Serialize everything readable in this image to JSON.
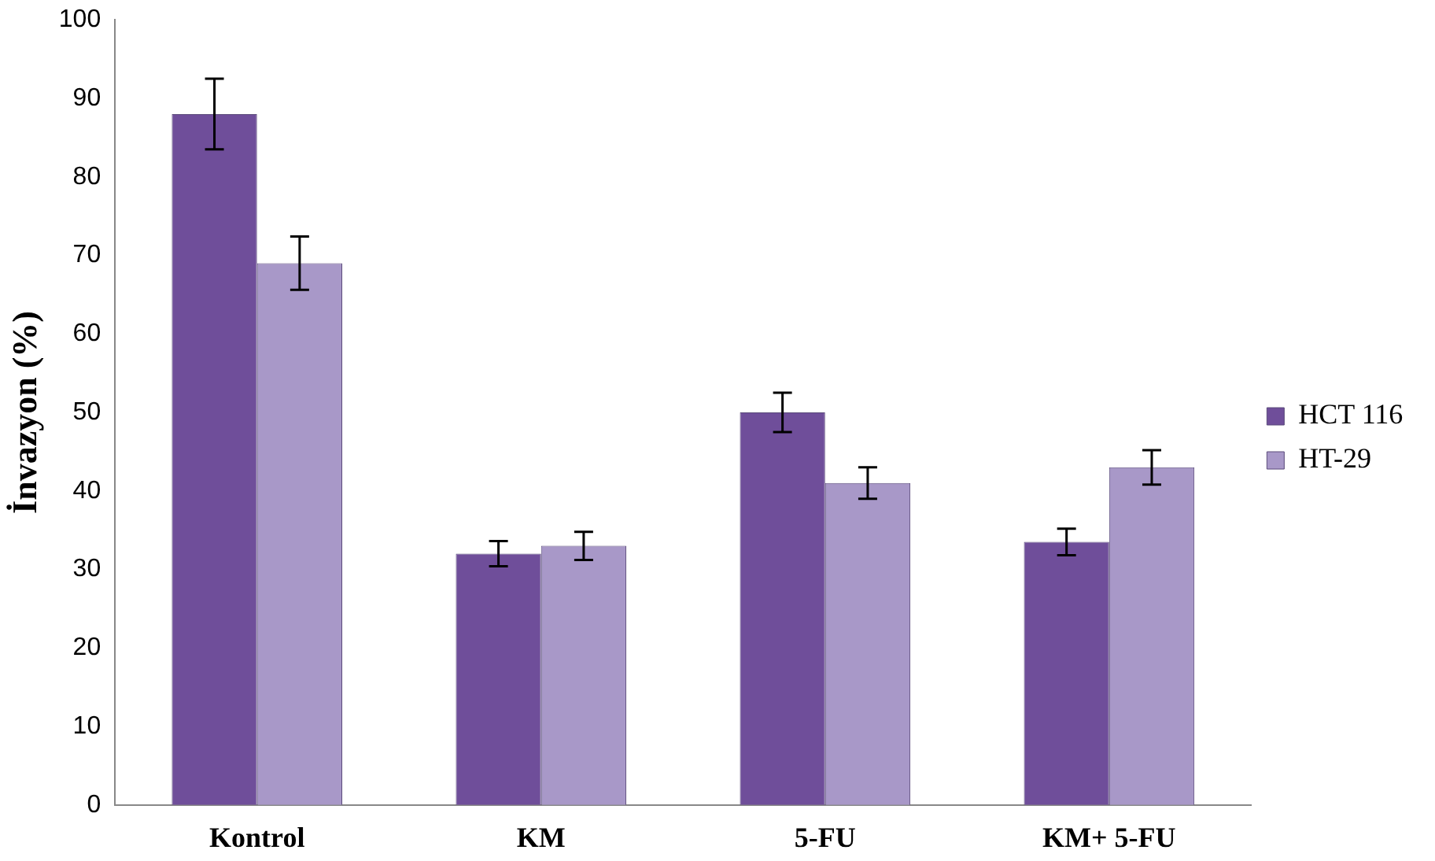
{
  "chart_data": {
    "type": "bar",
    "ylabel": "İnvazyon (%)",
    "categories": [
      "Kontrol",
      "KM",
      "5-FU",
      "KM+ 5-FU"
    ],
    "series": [
      {
        "name": "HCT 116",
        "color": "#6f4e9a",
        "values": [
          88,
          32,
          50,
          33.5
        ],
        "errors": [
          4.5,
          1.6,
          2.5,
          1.7
        ]
      },
      {
        "name": "HT-29",
        "color": "#a898c8",
        "values": [
          69,
          33,
          41,
          43
        ],
        "errors": [
          3.4,
          1.8,
          2,
          2.2
        ]
      }
    ],
    "ylim": [
      0,
      100
    ],
    "yticks": [
      0,
      10,
      20,
      30,
      40,
      50,
      60,
      70,
      80,
      90,
      100
    ],
    "grid": false,
    "legend": "right"
  }
}
